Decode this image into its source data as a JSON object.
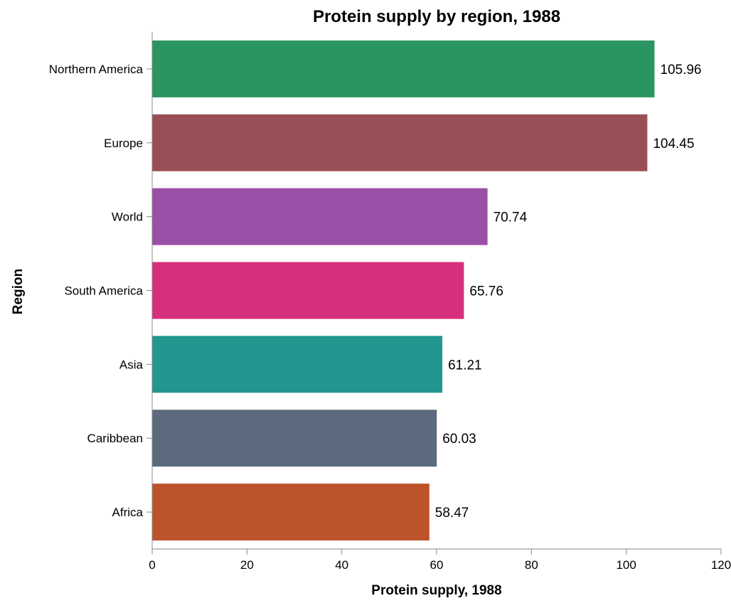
{
  "chart_data": {
    "type": "bar",
    "orientation": "horizontal",
    "title": "Protein supply by region, 1988",
    "xlabel": "Protein supply, 1988",
    "ylabel": "Region",
    "xlim": [
      0,
      120
    ],
    "x_ticks": [
      0,
      20,
      40,
      60,
      80,
      100,
      120
    ],
    "grid": false,
    "legend": "none",
    "categories": [
      "Northern America",
      "Europe",
      "World",
      "South America",
      "Asia",
      "Caribbean",
      "Africa"
    ],
    "values": [
      105.96,
      104.45,
      70.74,
      65.76,
      61.21,
      60.03,
      58.47
    ],
    "value_labels": [
      "105.96",
      "104.45",
      "70.74",
      "65.76",
      "61.21",
      "60.03",
      "58.47"
    ],
    "colors": [
      "#2a9560",
      "#9a4f56",
      "#9a50a6",
      "#d6307c",
      "#23968f",
      "#5b6a7c",
      "#bd532b"
    ]
  }
}
